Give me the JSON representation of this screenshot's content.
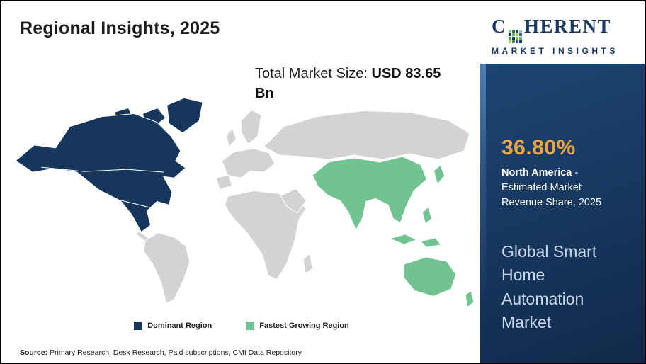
{
  "colors": {
    "navy": "#16365c",
    "green": "#72c392",
    "map_gray": "#d3d3d3",
    "gold": "#f0a43c",
    "sidebar_navy": "#16365c",
    "market_name_text": "#c9d8ec"
  },
  "page": {
    "title": "Regional Insights, 2025",
    "market_size_label": "Total Market Size: ",
    "market_size_value": "USD 83.65 Bn",
    "source_label": "Source:",
    "source_text": " Primary Research, Desk Research, Paid subscriptions, CMI Data Repository"
  },
  "legend": {
    "dominant": {
      "label": "Dominant Region",
      "color": "#16365c"
    },
    "fastest": {
      "label": "Fastest Growing Region",
      "color": "#72c392"
    }
  },
  "brand": {
    "name_prefix": "C",
    "name_suffix": "HERENT",
    "subtitle": "MARKET INSIGHTS",
    "grid_colors": [
      "#7dc67e",
      "#2e7d32",
      "#1b3a66",
      "#8fd19e",
      "#1b3a66",
      "#66bb6a",
      "#9ccc65",
      "#2e5f8f",
      "#43a047",
      "#1b3a66",
      "#7cb342",
      "#66bb6a",
      "#9ccc65",
      "#388e3c",
      "#2e5f8f",
      "#1b3a66"
    ]
  },
  "sidebar": {
    "stat_value": "36.80%",
    "stat_region": "North America",
    "stat_rest": " - Estimated Market Revenue Share, 2025",
    "market_name": "Global Smart Home Automation Market"
  },
  "chart_data": {
    "type": "choropleth_map",
    "title": "Regional Insights, 2025",
    "market": "Global Smart Home Automation Market",
    "year": 2025,
    "total_market_size": "USD 83.65 Bn",
    "total_market_size_usd_bn": 83.65,
    "regions": [
      {
        "name": "North America",
        "role": "Dominant Region",
        "estimated_market_revenue_share_2025_pct": 36.8,
        "color": "#16365c"
      },
      {
        "name": "Asia Pacific",
        "role": "Fastest Growing Region",
        "color": "#72c392"
      }
    ],
    "legend": [
      "Dominant Region",
      "Fastest Growing Region"
    ],
    "source": "Primary Research, Desk Research, Paid subscriptions, CMI Data Repository"
  }
}
